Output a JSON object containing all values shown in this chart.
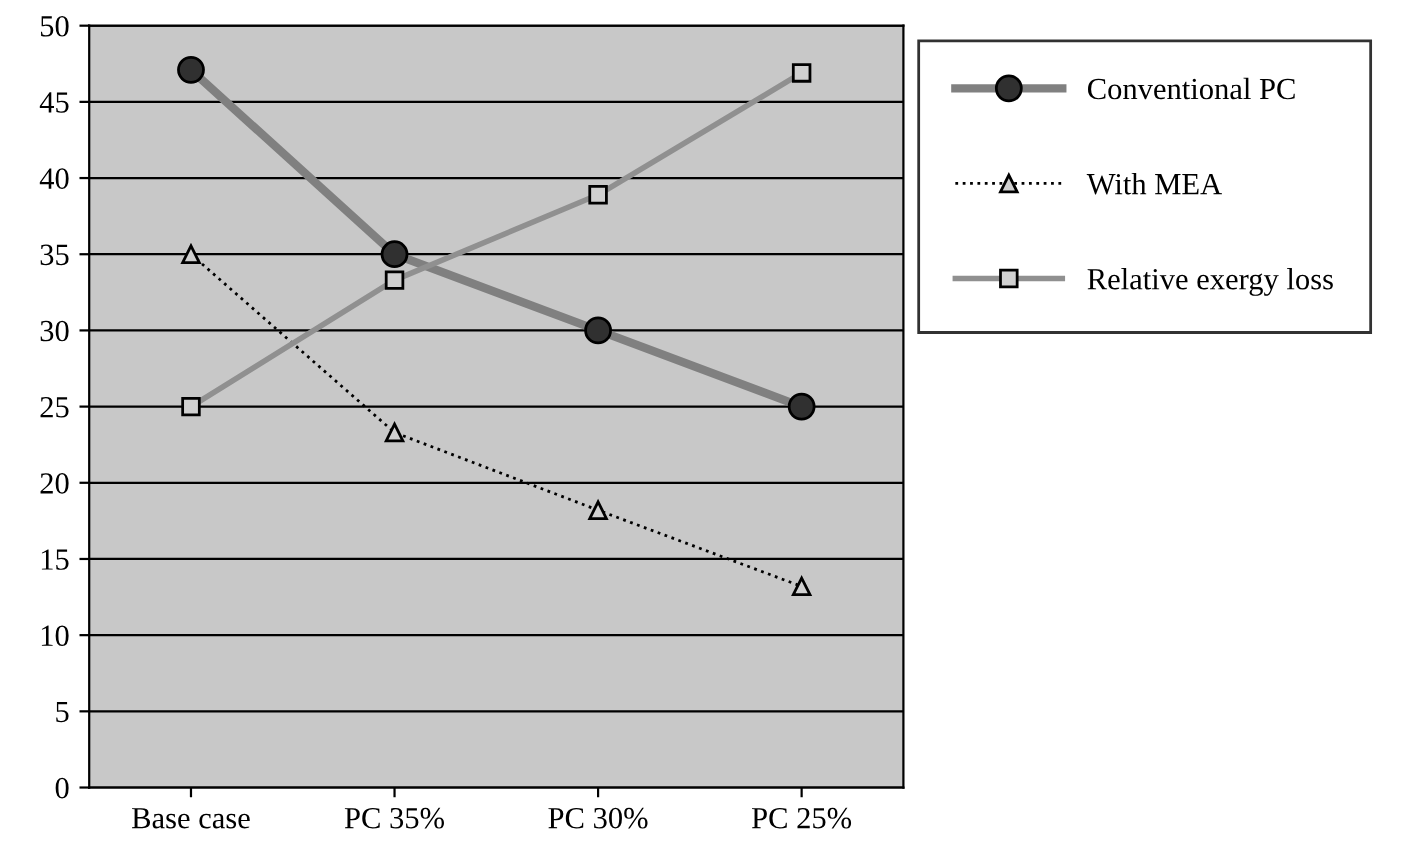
{
  "chart_data": {
    "type": "line",
    "categories": [
      "Base case",
      "PC 35%",
      "PC 30%",
      "PC 25%"
    ],
    "series": [
      {
        "name": "Conventional PC",
        "color": "#808080",
        "values": [
          47.1,
          35,
          30,
          25
        ],
        "marker": "circle",
        "line_style": "solid"
      },
      {
        "name": "With MEA",
        "color": "#000000",
        "values": [
          35,
          23.3,
          18.2,
          13.2
        ],
        "marker": "triangle",
        "line_style": "dotted"
      },
      {
        "name": "Relative exergy loss",
        "color": "#909090",
        "values": [
          25,
          33.3,
          38.9,
          46.9
        ],
        "marker": "square",
        "line_style": "solid"
      }
    ],
    "ylim": [
      0,
      50
    ],
    "yticks": [
      0,
      5,
      10,
      15,
      20,
      25,
      30,
      35,
      40,
      45,
      50
    ],
    "grid": "y",
    "legend": "right"
  }
}
